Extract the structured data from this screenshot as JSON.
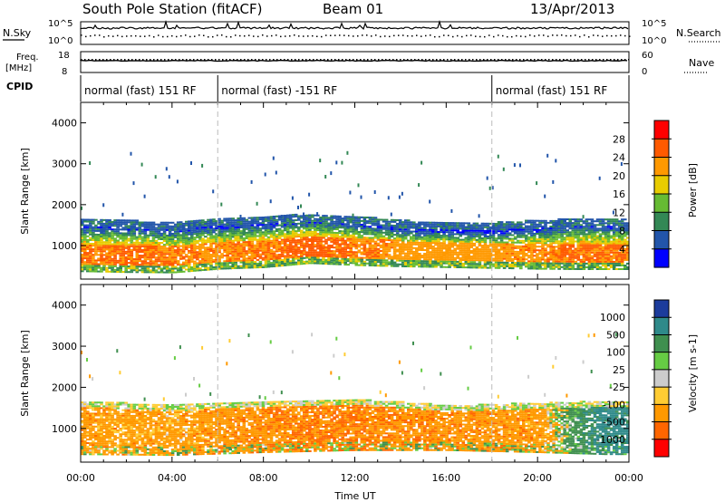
{
  "header": {
    "station": "South Pole Station (fitACF)",
    "beam": "Beam 01",
    "date": "13/Apr/2013"
  },
  "noise_panel": {
    "left_label": "N.Sky",
    "right_label": "N.Search",
    "left_ticks": [
      "10^5",
      "10^0"
    ],
    "right_ticks": [
      "10^5",
      "10^0"
    ]
  },
  "freq_panel": {
    "left_label_line1": "Freq.",
    "left_label_line2": "[MHz]",
    "right_label": "Nave",
    "left_ticks": [
      "18",
      "8"
    ],
    "right_ticks": [
      "60",
      "0"
    ]
  },
  "cpid_panel": {
    "label": "CPID",
    "segments": [
      {
        "label": "normal (fast) 151 RF",
        "start_hour": 0,
        "end_hour": 6
      },
      {
        "label": "normal (fast) -151 RF",
        "start_hour": 6,
        "end_hour": 18
      },
      {
        "label": "normal (fast) 151 RF",
        "start_hour": 18,
        "end_hour": 24
      }
    ]
  },
  "colorbar_power": {
    "title": "Power [dB]",
    "ticks": [
      "28",
      "24",
      "20",
      "16",
      "12",
      "8",
      "4"
    ],
    "colors": [
      "#ff0000",
      "#ff5a00",
      "#ff9900",
      "#e8cc00",
      "#66bb33",
      "#338855",
      "#2255aa",
      "#0000ff"
    ]
  },
  "colorbar_velocity": {
    "title": "Velocity [m s-1]",
    "ticks": [
      "1000",
      "500",
      "100",
      "25",
      "-25",
      "-100",
      "-500",
      "-1000"
    ],
    "colors": [
      "#1c3c9c",
      "#2f8a8a",
      "#3f8f4f",
      "#66cc44",
      "#cccccc",
      "#ffcc33",
      "#ff9900",
      "#ff6600",
      "#ff0000"
    ]
  },
  "chart_data": [
    {
      "type": "heatmap",
      "title": "Power",
      "xlabel": "Time UT",
      "ylabel": "Slant Range [km]",
      "x_ticks": [
        "00:00",
        "04:00",
        "08:00",
        "12:00",
        "16:00",
        "20:00",
        "00:00"
      ],
      "xlim_hours": [
        0,
        24
      ],
      "y_ticks": [
        "1000",
        "2000",
        "3000",
        "4000"
      ],
      "ylim_km": [
        180,
        4500
      ],
      "colorbar_ticks_db": [
        4,
        8,
        12,
        16,
        20,
        24,
        28
      ],
      "backscatter_band_km": [
        {
          "hour": 0,
          "bottom": 500,
          "center": 850,
          "top": 1450,
          "power_db": 26
        },
        {
          "hour": 2,
          "bottom": 480,
          "center": 820,
          "top": 1400,
          "power_db": 27
        },
        {
          "hour": 4,
          "bottom": 470,
          "center": 800,
          "top": 1350,
          "power_db": 26
        },
        {
          "hour": 6,
          "bottom": 560,
          "center": 900,
          "top": 1450,
          "power_db": 25
        },
        {
          "hour": 8,
          "bottom": 600,
          "center": 950,
          "top": 1500,
          "power_db": 26
        },
        {
          "hour": 10,
          "bottom": 700,
          "center": 1050,
          "top": 1550,
          "power_db": 28
        },
        {
          "hour": 12,
          "bottom": 650,
          "center": 1000,
          "top": 1500,
          "power_db": 26
        },
        {
          "hour": 14,
          "bottom": 620,
          "center": 950,
          "top": 1400,
          "power_db": 24
        },
        {
          "hour": 16,
          "bottom": 600,
          "center": 920,
          "top": 1350,
          "power_db": 24
        },
        {
          "hour": 18,
          "bottom": 580,
          "center": 880,
          "top": 1350,
          "power_db": 24
        },
        {
          "hour": 20,
          "bottom": 560,
          "center": 860,
          "top": 1400,
          "power_db": 25
        },
        {
          "hour": 22,
          "bottom": 550,
          "center": 840,
          "top": 1450,
          "power_db": 27
        },
        {
          "hour": 24,
          "bottom": 550,
          "center": 850,
          "top": 1450,
          "power_db": 26
        }
      ]
    },
    {
      "type": "heatmap",
      "title": "Velocity",
      "xlabel": "Time UT",
      "ylabel": "Slant Range [km]",
      "x_ticks": [
        "00:00",
        "04:00",
        "08:00",
        "12:00",
        "16:00",
        "20:00",
        "00:00"
      ],
      "xlim_hours": [
        0,
        24
      ],
      "y_ticks": [
        "1000",
        "2000",
        "3000",
        "4000"
      ],
      "ylim_km": [
        180,
        4500
      ],
      "colorbar_ticks_ms": [
        -1000,
        -500,
        -100,
        -25,
        25,
        100,
        500,
        1000
      ],
      "velocity_band_km": [
        {
          "hour": 0,
          "bottom": 450,
          "top": 1500,
          "velocity_ms": -300
        },
        {
          "hour": 4,
          "bottom": 430,
          "top": 1400,
          "velocity_ms": -250
        },
        {
          "hour": 8,
          "bottom": 500,
          "top": 1500,
          "velocity_ms": -400
        },
        {
          "hour": 12,
          "bottom": 550,
          "top": 1550,
          "velocity_ms": -500
        },
        {
          "hour": 16,
          "bottom": 550,
          "top": 1400,
          "velocity_ms": -350
        },
        {
          "hour": 20,
          "bottom": 500,
          "top": 1450,
          "velocity_ms": -300
        },
        {
          "hour": 23,
          "bottom": 450,
          "top": 1500,
          "velocity_ms": 700
        },
        {
          "hour": 24,
          "bottom": 450,
          "top": 1500,
          "velocity_ms": 700
        }
      ]
    }
  ]
}
